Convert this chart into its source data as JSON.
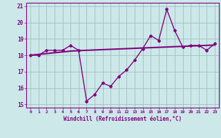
{
  "xlabel": "Windchill (Refroidissement éolien,°C)",
  "x": [
    0,
    1,
    2,
    3,
    4,
    5,
    6,
    7,
    8,
    9,
    10,
    11,
    12,
    13,
    14,
    15,
    16,
    17,
    18,
    19,
    20,
    21,
    22,
    23
  ],
  "y_windchill": [
    18.0,
    18.0,
    18.3,
    18.3,
    18.3,
    18.6,
    18.3,
    15.2,
    15.6,
    16.3,
    16.1,
    16.7,
    17.1,
    17.7,
    18.4,
    19.2,
    18.9,
    20.8,
    19.5,
    18.5,
    18.6,
    18.6,
    18.3,
    18.7
  ],
  "y_trend": [
    18.0,
    18.05,
    18.1,
    18.15,
    18.2,
    18.25,
    18.28,
    18.3,
    18.32,
    18.34,
    18.36,
    18.38,
    18.4,
    18.42,
    18.44,
    18.46,
    18.48,
    18.5,
    18.52,
    18.54,
    18.56,
    18.58,
    18.6,
    18.62
  ],
  "line_color": "#800080",
  "bg_color": "#cce8e8",
  "grid_color": "#9fbfbf",
  "ylim": [
    14.8,
    21.2
  ],
  "yticks": [
    15,
    16,
    17,
    18,
    19,
    20,
    21
  ],
  "xticks": [
    0,
    1,
    2,
    3,
    4,
    5,
    6,
    7,
    8,
    9,
    10,
    11,
    12,
    13,
    14,
    15,
    16,
    17,
    18,
    19,
    20,
    21,
    22,
    23
  ]
}
